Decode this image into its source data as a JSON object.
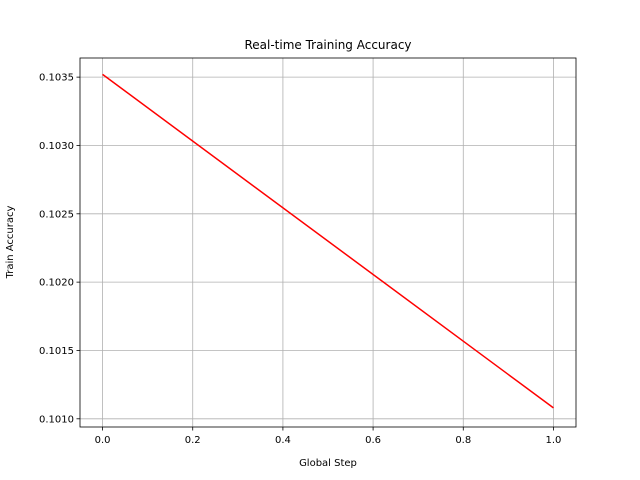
{
  "chart_data": {
    "type": "line",
    "title": "Real-time Training Accuracy",
    "xlabel": "Global Step",
    "ylabel": "Train Accuracy",
    "xlim": [
      -0.05,
      1.05
    ],
    "ylim": [
      0.10094,
      0.10364
    ],
    "x_ticks": [
      0.0,
      0.2,
      0.4,
      0.6,
      0.8,
      1.0
    ],
    "x_tick_labels": [
      "0.0",
      "0.2",
      "0.4",
      "0.6",
      "0.8",
      "1.0"
    ],
    "y_ticks": [
      0.101,
      0.1015,
      0.102,
      0.1025,
      0.103,
      0.1035
    ],
    "y_tick_labels": [
      "0.1010",
      "0.1015",
      "0.1020",
      "0.1025",
      "0.1030",
      "0.1035"
    ],
    "grid": true,
    "series": [
      {
        "color": "#ff0000",
        "x": [
          0.0,
          1.0
        ],
        "y": [
          0.10352,
          0.10108
        ]
      }
    ]
  }
}
